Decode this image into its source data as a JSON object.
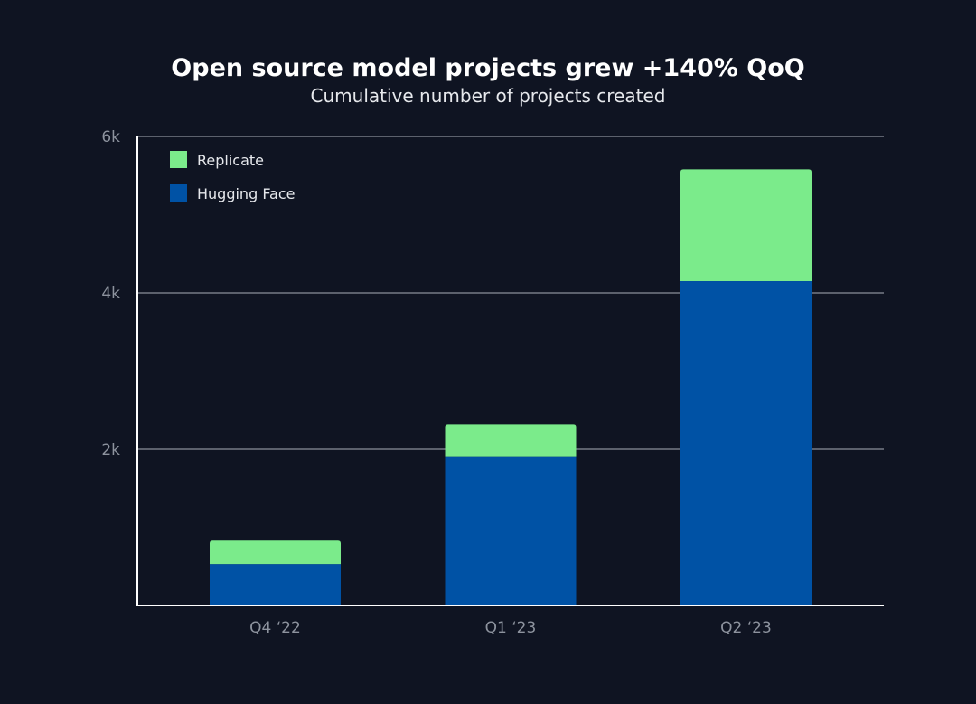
{
  "chart_data": {
    "type": "bar",
    "stacked": true,
    "title": "Open source model projects grew +140% QoQ",
    "subtitle": "Cumulative number of projects created",
    "categories": [
      "Q4 ‘22",
      "Q1 ‘23",
      "Q2 ‘23"
    ],
    "series": [
      {
        "name": "Hugging Face",
        "color": "#0052a5",
        "values": [
          530,
          1900,
          4150
        ]
      },
      {
        "name": "Replicate",
        "color": "#7beb8b",
        "values": [
          300,
          420,
          1430
        ]
      }
    ],
    "ylim": [
      0,
      6000
    ],
    "yticks": [
      {
        "value": 2000,
        "label": "2k"
      },
      {
        "value": 4000,
        "label": "4k"
      },
      {
        "value": 6000,
        "label": "6k"
      }
    ],
    "grid": true,
    "legend_placement": "top-left",
    "legend": [
      "Replicate",
      "Hugging Face"
    ]
  }
}
